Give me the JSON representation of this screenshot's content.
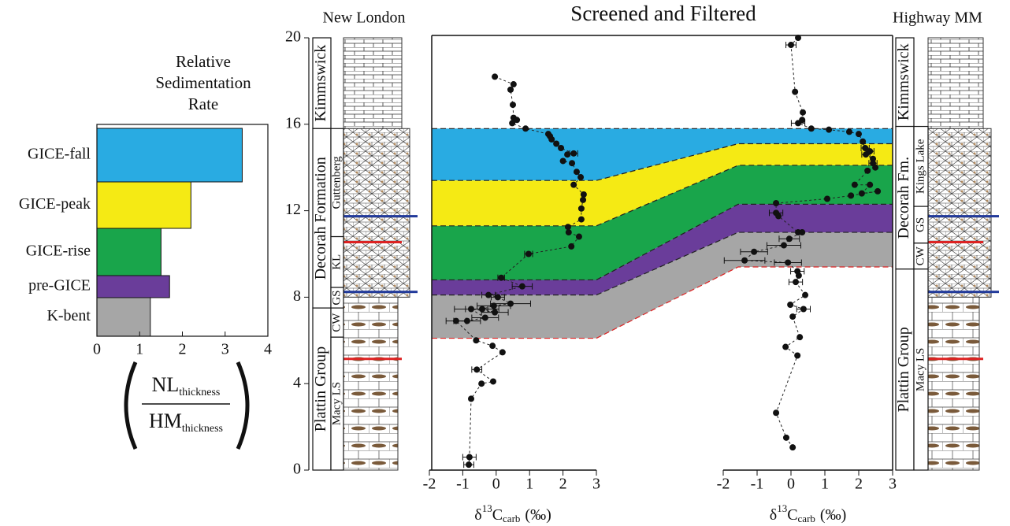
{
  "title": "Screened and Filtered",
  "chart_data": [
    {
      "type": "hbar",
      "title_lines": [
        "Relative",
        "Sedimentation",
        "Rate"
      ],
      "categories": [
        "GICE-fall",
        "GICE-peak",
        "GICE-rise",
        "pre-GICE",
        "K-bent"
      ],
      "values": [
        3.4,
        2.2,
        1.5,
        1.7,
        1.25
      ],
      "colors": [
        "#29abe2",
        "#f5ea14",
        "#19a54b",
        "#6a3d9a",
        "#a6a6a6"
      ],
      "xlim": [
        0,
        4
      ],
      "xticks": [
        0,
        1,
        2,
        3,
        4
      ],
      "x_label": {
        "numerator": "NL",
        "numerator_sub": "thickness",
        "denominator": "HM",
        "denominator_sub": "thickness"
      }
    },
    {
      "type": "scatter",
      "title": "New London",
      "color": "#111111",
      "x": [
        -0.04,
        0.52,
        0.43,
        0.5,
        0.52,
        0.62,
        0.48,
        0.88,
        1.56,
        1.61,
        1.66,
        1.8,
        1.94,
        2.32,
        2.13,
        2.0,
        2.27,
        2.41,
        2.53,
        2.32,
        2.62,
        2.6,
        2.55,
        2.55,
        2.15,
        2.17,
        2.48,
        2.25,
        0.97,
        0.15,
        0.78,
        -0.23,
        0.05,
        0.43,
        -0.07,
        -0.42,
        -0.04,
        -0.75,
        -0.33,
        -0.87,
        -1.2,
        -0.6,
        -0.11,
        0.19,
        -0.58,
        -0.09,
        -0.44,
        -0.75,
        -0.8,
        -0.82
      ],
      "y": [
        18.2,
        17.85,
        17.6,
        16.9,
        16.3,
        16.2,
        16.05,
        15.8,
        15.55,
        15.45,
        15.3,
        15.1,
        14.9,
        14.65,
        14.6,
        14.3,
        14.2,
        13.8,
        13.55,
        13.2,
        12.75,
        12.5,
        12.1,
        11.6,
        11.25,
        11.0,
        10.8,
        10.35,
        10.0,
        8.9,
        8.5,
        8.1,
        8.0,
        7.7,
        7.6,
        7.45,
        7.3,
        7.45,
        7.05,
        6.9,
        6.9,
        6.0,
        5.75,
        5.45,
        4.65,
        4.1,
        4.0,
        3.3,
        0.6,
        0.25
      ],
      "xerr": [
        null,
        null,
        null,
        null,
        null,
        null,
        null,
        null,
        null,
        null,
        null,
        null,
        null,
        0.12,
        null,
        null,
        null,
        null,
        null,
        null,
        null,
        null,
        null,
        null,
        null,
        null,
        null,
        null,
        0.12,
        0.1,
        0.3,
        0.2,
        0.2,
        0.6,
        0.5,
        0.5,
        0.4,
        0.5,
        0.4,
        0.4,
        0.3,
        null,
        null,
        null,
        0.15,
        null,
        null,
        null,
        0.2,
        0.15
      ],
      "xlim": [
        -2,
        3
      ],
      "xticks": [
        -2,
        -1,
        0,
        1,
        2,
        3
      ],
      "ylim": [
        0,
        20
      ],
      "yticks": [
        0,
        4,
        8,
        12,
        16,
        20
      ],
      "x_label": {
        "symbol": "δ",
        "superscript": "13",
        "base": "C",
        "subscript": "carb",
        "unit": "(‰)"
      }
    },
    {
      "type": "scatter",
      "title": "Highway MM",
      "color": "#111111",
      "x": [
        0.21,
        0.0,
        0.12,
        0.35,
        0.33,
        0.21,
        0.6,
        1.12,
        1.72,
        2.0,
        2.12,
        2.19,
        2.33,
        2.21,
        2.42,
        2.42,
        2.49,
        2.26,
        1.88,
        2.33,
        2.09,
        2.56,
        1.77,
        1.07,
        -0.44,
        -0.44,
        -0.37,
        0.21,
        0.33,
        -0.05,
        -0.21,
        -1.09,
        -1.37,
        -0.09,
        0.19,
        0.23,
        0.14,
        0.42,
        -0.02,
        0.37,
        0.05,
        0.26,
        -0.16,
        0.19,
        -0.44,
        -0.14,
        0.05
      ],
      "y": [
        20.0,
        19.67,
        17.5,
        16.55,
        16.2,
        16.05,
        15.8,
        15.75,
        15.65,
        15.55,
        15.2,
        14.9,
        14.75,
        14.6,
        14.4,
        14.2,
        14.0,
        13.85,
        13.2,
        13.2,
        12.8,
        12.9,
        12.7,
        12.55,
        12.35,
        11.9,
        11.75,
        11.0,
        11.0,
        10.7,
        10.4,
        10.1,
        9.7,
        9.6,
        9.2,
        9.0,
        8.7,
        8.1,
        7.65,
        7.45,
        7.1,
        6.15,
        5.7,
        5.3,
        2.65,
        1.5,
        1.05
      ],
      "xerr": [
        null,
        0.15,
        null,
        null,
        null,
        0.2,
        null,
        null,
        null,
        null,
        null,
        0.12,
        0.12,
        0.12,
        null,
        0.12,
        null,
        null,
        null,
        null,
        null,
        null,
        null,
        null,
        null,
        0.2,
        null,
        null,
        null,
        0.3,
        0.5,
        0.4,
        0.6,
        0.4,
        0.2,
        null,
        0.2,
        null,
        null,
        0.2,
        null,
        null,
        null,
        null,
        null,
        null,
        null
      ],
      "xlim": [
        -2,
        3
      ],
      "xticks": [
        -2,
        -1,
        0,
        1,
        2,
        3
      ],
      "ylim": [
        0,
        20
      ],
      "x_label": {
        "symbol": "δ",
        "superscript": "13",
        "base": "C",
        "subscript": "carb",
        "unit": "(‰)"
      }
    }
  ],
  "zones": [
    {
      "new_london": [
        13.4,
        15.8
      ],
      "highway_mm": [
        15.1,
        15.8
      ]
    },
    {
      "new_london": [
        11.3,
        13.4
      ],
      "highway_mm": [
        14.1,
        15.1
      ]
    },
    {
      "new_london": [
        8.8,
        11.3
      ],
      "highway_mm": [
        12.3,
        14.1
      ]
    },
    {
      "new_london": [
        8.1,
        8.8
      ],
      "highway_mm": [
        11.0,
        12.3
      ]
    },
    {
      "new_london": [
        6.1,
        8.1
      ],
      "highway_mm": [
        9.4,
        11.0
      ]
    }
  ],
  "columns": {
    "new_london": {
      "formations": [
        {
          "name": "Kimmswick",
          "range": [
            15.8,
            20
          ]
        },
        {
          "name": "Decorah Formation",
          "range": [
            7.5,
            15.8
          ]
        },
        {
          "name": "Plattin Group",
          "range": [
            0,
            7.5
          ]
        }
      ],
      "members": [
        {
          "name": "Guttenberg",
          "range": [
            10.8,
            15.8
          ]
        },
        {
          "name": "KL",
          "range": [
            8.45,
            10.8
          ]
        },
        {
          "name": "GS",
          "range": [
            7.5,
            8.45
          ]
        },
        {
          "name": "CW",
          "range": [
            6.15,
            7.5
          ]
        },
        {
          "name": "Macy LS",
          "range": [
            0,
            6.15
          ]
        }
      ]
    },
    "highway_mm": {
      "formations": [
        {
          "name": "Kimmswick",
          "range": [
            15.9,
            20
          ]
        },
        {
          "name": "Decorah Fm.",
          "range": [
            9.3,
            15.9
          ]
        },
        {
          "name": "Plattin Group",
          "range": [
            0,
            9.3
          ]
        }
      ],
      "members": [
        {
          "name": "Kings Lake",
          "range": [
            12.2,
            15.9
          ]
        },
        {
          "name": "GS",
          "range": [
            10.5,
            12.2
          ]
        },
        {
          "name": "CW",
          "range": [
            9.3,
            10.5
          ]
        },
        {
          "name": "Macy LS",
          "range": [
            0,
            9.3
          ]
        }
      ]
    }
  }
}
